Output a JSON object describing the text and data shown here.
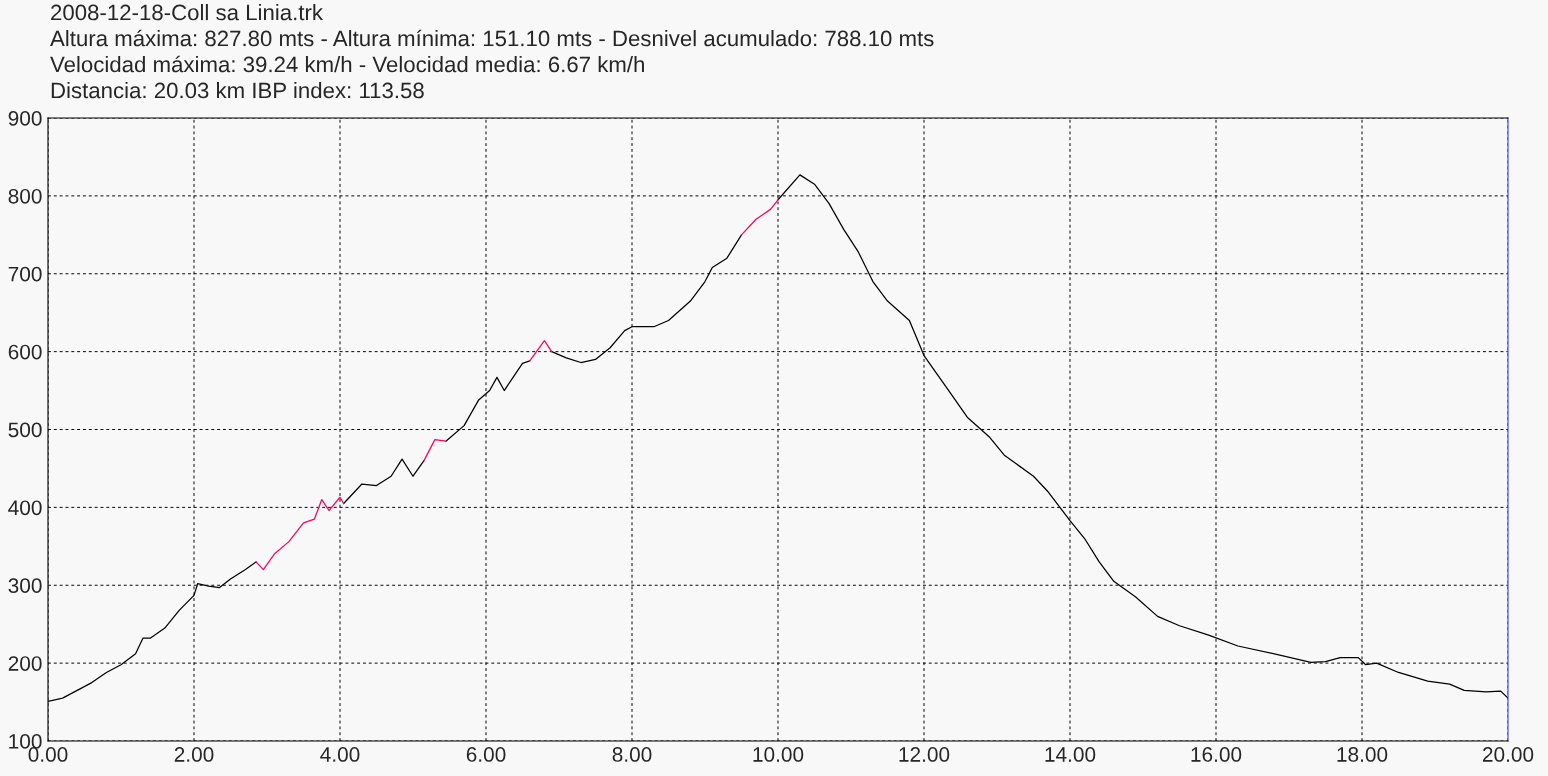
{
  "chart_data": {
    "type": "line",
    "title": "2008-12-18-Coll sa Linia.trk",
    "annotations": [
      "Altura máxima: 827.80 mts - Altura mínima: 151.10 mts - Desnivel acumulado: 788.10 mts",
      "Velocidad máxima: 39.24 km/h - Velocidad media: 6.67 km/h",
      "Distancia: 20.03 km IBP index: 113.58"
    ],
    "x": [
      0.0,
      0.2,
      0.4,
      0.6,
      0.8,
      1.0,
      1.2,
      1.3,
      1.4,
      1.6,
      1.8,
      2.0,
      2.05,
      2.2,
      2.35,
      2.5,
      2.7,
      2.85,
      2.95,
      3.1,
      3.3,
      3.5,
      3.65,
      3.75,
      3.85,
      4.0,
      4.05,
      4.3,
      4.5,
      4.7,
      4.85,
      5.0,
      5.15,
      5.3,
      5.45,
      5.7,
      5.9,
      6.05,
      6.15,
      6.25,
      6.5,
      6.6,
      6.8,
      6.9,
      7.1,
      7.3,
      7.5,
      7.7,
      7.9,
      8.0,
      8.3,
      8.5,
      8.8,
      9.0,
      9.1,
      9.3,
      9.5,
      9.7,
      9.9,
      10.0,
      10.3,
      10.5,
      10.7,
      10.9,
      11.1,
      11.3,
      11.5,
      11.8,
      12.0,
      12.3,
      12.6,
      12.9,
      13.1,
      13.5,
      13.7,
      14.0,
      14.2,
      14.4,
      14.6,
      14.9,
      15.2,
      15.5,
      15.9,
      16.3,
      16.8,
      17.3,
      17.5,
      17.7,
      17.95,
      18.05,
      18.2,
      18.5,
      18.9,
      19.2,
      19.4,
      19.7,
      19.9,
      20.0
    ],
    "series": [
      {
        "color": "#000000",
        "values": [
          151,
          155,
          165,
          175,
          188,
          198,
          212,
          232,
          232,
          245,
          268,
          287,
          302,
          299,
          297,
          308,
          320,
          330,
          null,
          null,
          null,
          null,
          null,
          null,
          null,
          null,
          405,
          430,
          428,
          440,
          462,
          440,
          460,
          null,
          485,
          505,
          538,
          550,
          567,
          550,
          585,
          588,
          null,
          600,
          592,
          586,
          590,
          605,
          627,
          632,
          632,
          640,
          665,
          690,
          708,
          720,
          750,
          null,
          null,
          795,
          827,
          815,
          790,
          757,
          728,
          690,
          665,
          640,
          595,
          555,
          515,
          490,
          467,
          440,
          420,
          383,
          360,
          330,
          305,
          285,
          260,
          248,
          236,
          222,
          212,
          201,
          202,
          207,
          207,
          198,
          200,
          188,
          177,
          173,
          165,
          163,
          164,
          155
        ]
      },
      {
        "color": "#ff0060",
        "values": [
          null,
          null,
          null,
          null,
          null,
          null,
          null,
          null,
          null,
          null,
          null,
          null,
          null,
          null,
          null,
          null,
          null,
          330,
          320,
          340,
          356,
          380,
          385,
          410,
          396,
          413,
          405,
          null,
          null,
          null,
          null,
          null,
          460,
          487,
          485,
          null,
          null,
          null,
          null,
          null,
          null,
          588,
          614,
          600,
          null,
          null,
          null,
          null,
          null,
          null,
          null,
          null,
          null,
          null,
          null,
          null,
          750,
          770,
          783,
          795,
          null,
          null,
          null,
          null,
          null,
          null,
          null,
          null,
          null,
          null,
          null,
          null,
          null,
          null,
          null,
          null,
          null,
          null,
          null,
          null,
          null,
          null,
          null,
          null,
          null,
          null,
          null,
          null,
          null,
          null,
          null,
          null,
          null,
          null,
          null,
          null,
          null,
          null
        ]
      }
    ],
    "xlim": [
      0,
      20
    ],
    "ylim": [
      100,
      900
    ],
    "xticks": [
      {
        "value": 0,
        "label": "0.00"
      },
      {
        "value": 2,
        "label": "2.00"
      },
      {
        "value": 4,
        "label": "4.00"
      },
      {
        "value": 6,
        "label": "6.00"
      },
      {
        "value": 8,
        "label": "8.00"
      },
      {
        "value": 10,
        "label": "10.00"
      },
      {
        "value": 12,
        "label": "12.00"
      },
      {
        "value": 14,
        "label": "14.00"
      },
      {
        "value": 16,
        "label": "16.00"
      },
      {
        "value": 18,
        "label": "18.00"
      },
      {
        "value": 20,
        "label": "20.00"
      }
    ],
    "yticks": [
      100,
      200,
      300,
      400,
      500,
      600,
      700,
      800,
      900
    ],
    "grid": true,
    "marker": "none",
    "line_style": "solid"
  }
}
